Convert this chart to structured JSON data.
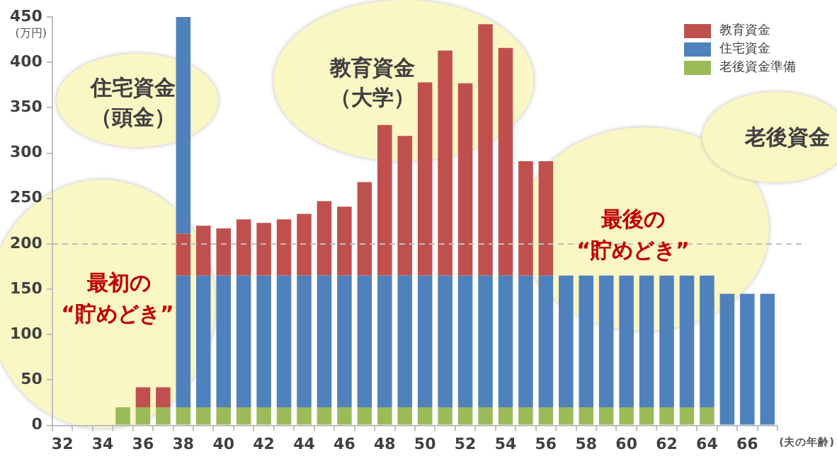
{
  "chart_data": {
    "type": "bar",
    "stacked": true,
    "ylabel": "(万円)",
    "xlabel": "(夫の年齢)",
    "categories": [
      "32",
      null,
      "34",
      null,
      "36",
      null,
      "38",
      null,
      "40",
      null,
      "42",
      null,
      "44",
      null,
      "46",
      null,
      "48",
      null,
      "50",
      null,
      "52",
      null,
      "54",
      null,
      "56",
      null,
      "58",
      null,
      "60",
      null,
      "62",
      null,
      "64",
      null,
      "66",
      null
    ],
    "series": [
      {
        "name": "老後資金準備",
        "color": "#9bbb59",
        "values": [
          null,
          null,
          null,
          20,
          20,
          20,
          20,
          20,
          20,
          20,
          20,
          20,
          20,
          20,
          20,
          20,
          20,
          20,
          20,
          20,
          20,
          20,
          20,
          20,
          20,
          20,
          20,
          20,
          20,
          20,
          20,
          20,
          20,
          null,
          null,
          null
        ]
      },
      {
        "name": "住宅資金",
        "color": "#4f81bd",
        "values": [
          null,
          null,
          null,
          null,
          null,
          null,
          145,
          145,
          145,
          145,
          145,
          145,
          145,
          145,
          145,
          145,
          145,
          145,
          145,
          145,
          145,
          145,
          145,
          145,
          145,
          145,
          145,
          145,
          145,
          145,
          145,
          145,
          145,
          145,
          145,
          145
        ]
      },
      {
        "name": "教育資金",
        "color": "#c0504d",
        "values": [
          null,
          null,
          null,
          null,
          22,
          22,
          46,
          55,
          52,
          62,
          58,
          62,
          68,
          82,
          76,
          103,
          166,
          154,
          213,
          248,
          212,
          277,
          251,
          126,
          126,
          null,
          null,
          null,
          null,
          null,
          null,
          null,
          null,
          null,
          null,
          null
        ]
      },
      {
        "color": "#4f81bd",
        "values": [
          null,
          null,
          null,
          null,
          null,
          null,
          239,
          null,
          null,
          null,
          null,
          null,
          null,
          null,
          null,
          null,
          null,
          null,
          null,
          null,
          null,
          null,
          null,
          null,
          null,
          null,
          null,
          null,
          null,
          null,
          null,
          null,
          null,
          null,
          null,
          null
        ]
      }
    ],
    "ylim": [
      0,
      450
    ],
    "yticks": [
      0,
      50,
      100,
      150,
      200,
      250,
      300,
      350,
      400,
      450
    ],
    "grid": false,
    "legend": "top right",
    "ref_lines": [
      {
        "axis": "y",
        "value": 200,
        "color": "#bfbfbf",
        "line_style": "dashed"
      }
    ],
    "annotations": [
      "住宅資金",
      "（頭金）",
      "教育資金",
      "（大学）",
      "最初の",
      "“貯めどき”",
      "最後の",
      "“貯めどき”",
      "老後資金"
    ]
  }
}
